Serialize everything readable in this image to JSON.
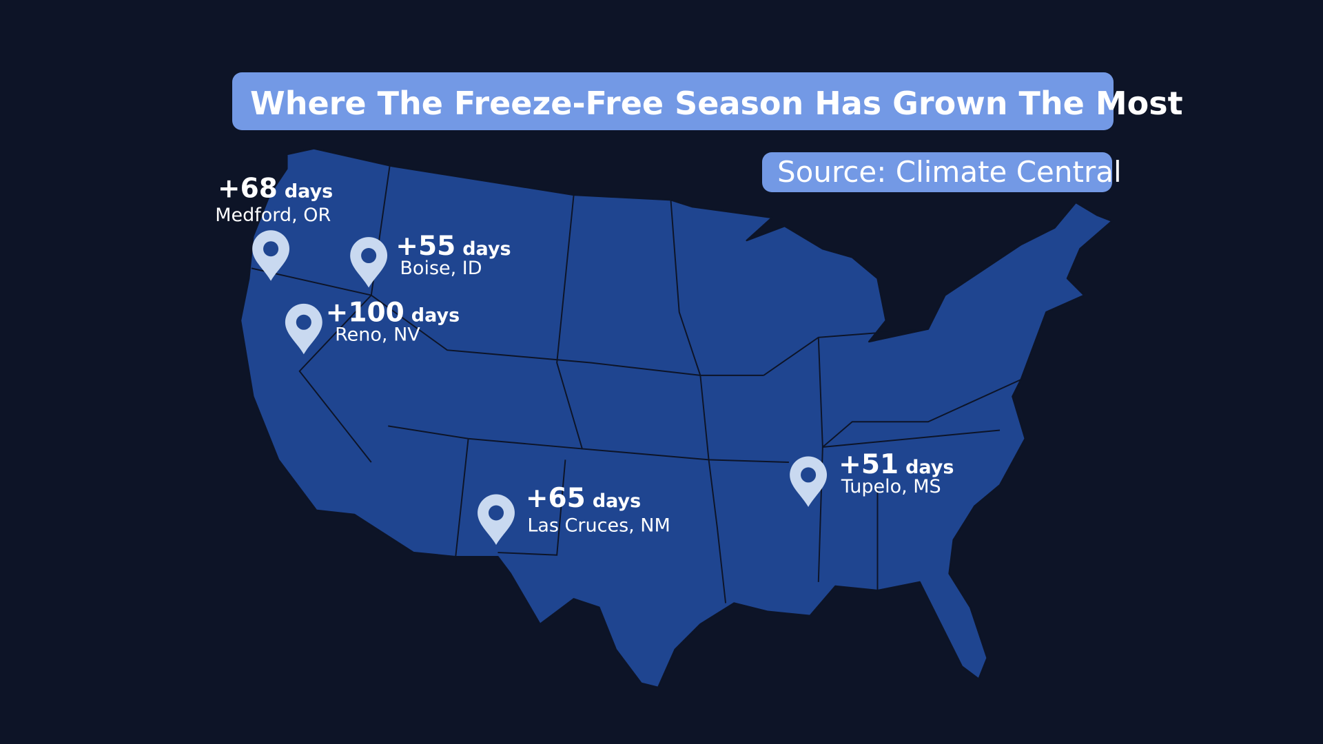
{
  "header": {
    "title": "Where The Freeze-Free Season Has Grown The Most",
    "source": "Source: Climate Central"
  },
  "locations": [
    {
      "value": "+68",
      "unit": "days",
      "city": "Medford, OR"
    },
    {
      "value": "+55",
      "unit": "days",
      "city": "Boise, ID"
    },
    {
      "value": "+100",
      "unit": "days",
      "city": "Reno, NV"
    },
    {
      "value": "+65",
      "unit": "days",
      "city": "Las Cruces, NM"
    },
    {
      "value": "+51",
      "unit": "days",
      "city": "Tupelo, MS"
    }
  ]
}
